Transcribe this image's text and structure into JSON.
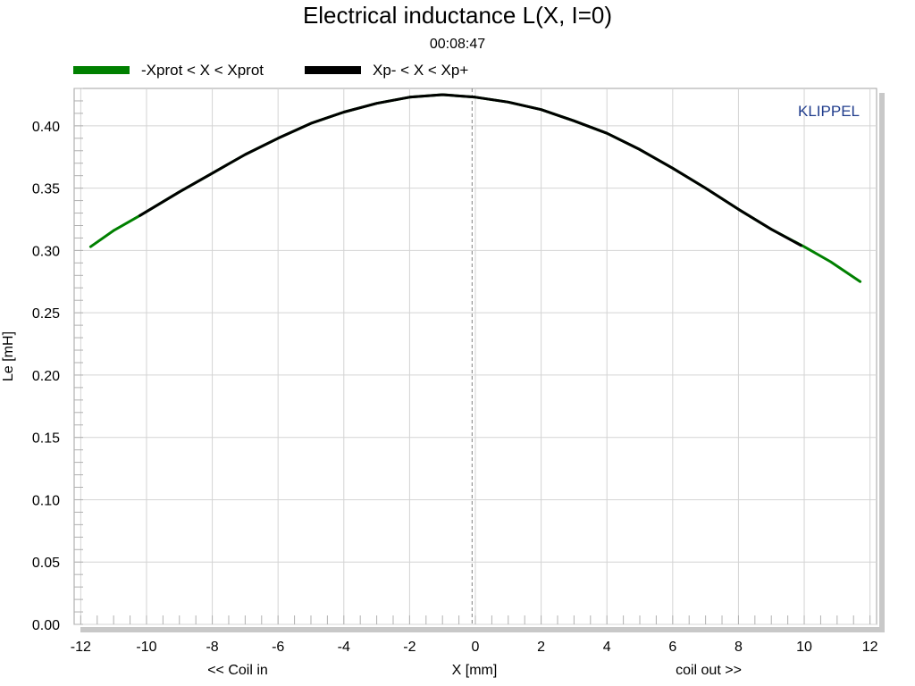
{
  "chart_data": {
    "type": "line",
    "title": "Electrical inductance L(X, I=0)",
    "subtitle": "00:08:47",
    "ylabel": "Le [mH]",
    "xlabel": "X [mm]",
    "x_left_note": "<< Coil in",
    "x_right_note": "coil out >>",
    "watermark": "KLIPPEL",
    "xlim": [
      -12.2,
      12.2
    ],
    "ylim": [
      0,
      0.43
    ],
    "x_ticks": [
      -12,
      -10,
      -8,
      -6,
      -4,
      -2,
      0,
      2,
      4,
      6,
      8,
      10,
      12
    ],
    "y_ticks": [
      0.0,
      0.05,
      0.1,
      0.15,
      0.2,
      0.25,
      0.3,
      0.35,
      0.4
    ],
    "x_tick_labels": [
      "-12",
      "-10",
      "-8",
      "-6",
      "-4",
      "-2",
      "0",
      "2",
      "4",
      "6",
      "8",
      "10",
      "12"
    ],
    "y_tick_labels": [
      "0.00",
      "0.05",
      "0.10",
      "0.15",
      "0.20",
      "0.25",
      "0.30",
      "0.35",
      "0.40"
    ],
    "grid": true,
    "legend_position": "top-left",
    "reference_line_x": -0.1,
    "series": [
      {
        "name": "-Xprot < X < Xprot",
        "color": "#008000",
        "x": [
          -11.7,
          -11,
          -10.2,
          -9,
          -8,
          -7,
          -6,
          -5,
          -4,
          -3,
          -2,
          -1,
          0,
          1,
          2,
          3,
          4,
          5,
          6,
          7,
          8,
          9,
          10,
          10.8,
          11.7
        ],
        "y": [
          0.303,
          0.316,
          0.328,
          0.347,
          0.362,
          0.377,
          0.39,
          0.402,
          0.411,
          0.418,
          0.423,
          0.425,
          0.423,
          0.419,
          0.413,
          0.404,
          0.394,
          0.381,
          0.366,
          0.35,
          0.333,
          0.317,
          0.303,
          0.291,
          0.275
        ]
      },
      {
        "name": "Xp- < X < Xp+",
        "color": "#000000",
        "x": [
          -10.2,
          -9,
          -8,
          -7,
          -6,
          -5,
          -4,
          -3,
          -2,
          -1,
          0,
          1,
          2,
          3,
          4,
          5,
          6,
          7,
          8,
          9,
          9.9
        ],
        "y": [
          0.328,
          0.347,
          0.362,
          0.377,
          0.39,
          0.402,
          0.411,
          0.418,
          0.423,
          0.425,
          0.423,
          0.419,
          0.413,
          0.404,
          0.394,
          0.381,
          0.366,
          0.35,
          0.333,
          0.317,
          0.304
        ]
      }
    ]
  }
}
